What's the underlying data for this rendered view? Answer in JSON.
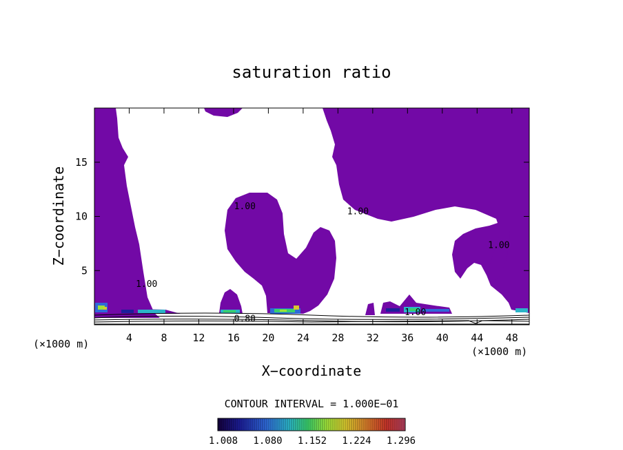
{
  "chart_data": {
    "type": "contour",
    "title": "saturation ratio",
    "xlabel": "X−coordinate",
    "ylabel": "Z−coordinate",
    "x_unit_left": "(×1000 m)",
    "x_unit_right": "(×1000 m)",
    "xlim": [
      0,
      50
    ],
    "ylim": [
      0,
      20
    ],
    "xticks": [
      4,
      8,
      12,
      16,
      20,
      24,
      28,
      32,
      36,
      40,
      44,
      48
    ],
    "yticks": [
      5,
      10,
      15
    ],
    "fill_color": "#7209a6",
    "contour_labels": [
      {
        "text": "1.00",
        "x": 17.3,
        "z": 11.0
      },
      {
        "text": "1.00",
        "x": 30.3,
        "z": 10.5
      },
      {
        "text": "1.00",
        "x": 46.5,
        "z": 7.4
      },
      {
        "text": "1.00",
        "x": 6.0,
        "z": 3.8
      },
      {
        "text": "1.00",
        "x": 36.9,
        "z": 1.2
      },
      {
        "text": "0.80",
        "x": 17.3,
        "z": 0.6
      }
    ],
    "contour_interval_text": "CONTOUR INTERVAL = 1.000E−01",
    "colorbar": {
      "ticks": [
        "1.008",
        "1.080",
        "1.152",
        "1.224",
        "1.296"
      ],
      "colors": [
        "#14003c",
        "#1c1e9a",
        "#2f6ad8",
        "#2bb5c8",
        "#3acf6a",
        "#9ee23a",
        "#d8c82e",
        "#d8782a",
        "#c8342a",
        "#b04060"
      ]
    }
  }
}
